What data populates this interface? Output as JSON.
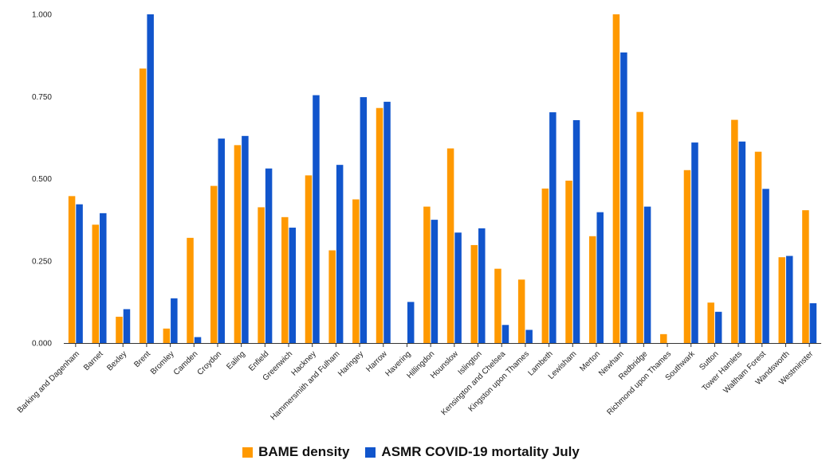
{
  "chart_data": {
    "type": "bar",
    "categories": [
      "Barking and Dagenham",
      "Barnet",
      "Bexley",
      "Brent",
      "Bromley",
      "Camden",
      "Croydon",
      "Ealing",
      "Enfield",
      "Greenwich",
      "Hackney",
      "Hammersmith and Fulham",
      "Haringey",
      "Harrow",
      "Havering",
      "Hillingdon",
      "Hounslow",
      "Islington",
      "Kensington and Chelsea",
      "Kingston upon Thames",
      "Lambeth",
      "Lewisham",
      "Merton",
      "Newham",
      "Redbridge",
      "Richmond upon Thames",
      "Southwark",
      "Sutton",
      "Tower Hamlets",
      "Waltham Forest",
      "Wandsworth",
      "Westminster"
    ],
    "series": [
      {
        "name": "BAME density",
        "color": "#FF9900",
        "values": [
          0.447,
          0.36,
          0.08,
          0.835,
          0.044,
          0.32,
          0.478,
          0.602,
          0.413,
          0.383,
          0.51,
          0.282,
          0.437,
          0.715,
          0.0,
          0.415,
          0.592,
          0.298,
          0.226,
          0.193,
          0.47,
          0.494,
          0.325,
          1.0,
          0.703,
          0.027,
          0.526,
          0.123,
          0.679,
          0.582,
          0.261,
          0.404
        ]
      },
      {
        "name": "ASMR COVID-19 mortality July",
        "color": "#1155CC",
        "values": [
          0.422,
          0.395,
          0.103,
          1.0,
          0.136,
          0.018,
          0.622,
          0.63,
          0.531,
          0.351,
          0.754,
          0.542,
          0.748,
          0.734,
          0.125,
          0.375,
          0.336,
          0.349,
          0.055,
          0.04,
          0.702,
          0.678,
          0.398,
          0.884,
          0.415,
          0.0,
          0.61,
          0.095,
          0.613,
          0.469,
          0.265,
          0.121
        ]
      }
    ],
    "yticks": [
      "0.000",
      "0.250",
      "0.500",
      "0.750",
      "1.000"
    ],
    "ylim": [
      0,
      1
    ],
    "grid": false,
    "legend_position": "bottom"
  }
}
